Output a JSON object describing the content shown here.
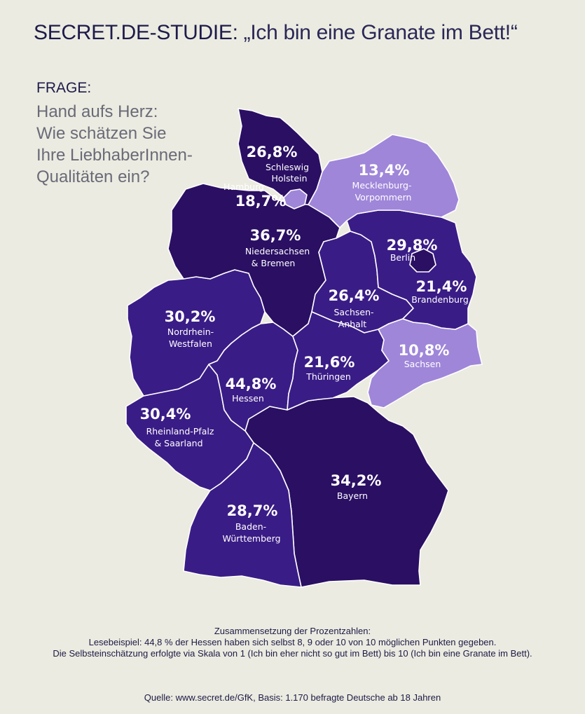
{
  "header": {
    "title_part1": "SECRET.DE-STUDIE:",
    "title_part2": "„Ich bin eine Granate im Bett!“"
  },
  "question": {
    "label": "FRAGE:",
    "lines": [
      "Hand aufs Herz:",
      "Wie schätzen Sie",
      "Ihre LiebhaberInnen-",
      "Qualitäten ein?"
    ]
  },
  "colors": {
    "dark": "#2a0f63",
    "mid": "#3a1c86",
    "light": "#9f86d9",
    "border": "#ffffff",
    "background": "#ebebe1"
  },
  "regions": [
    {
      "id": "schleswig-holstein",
      "value": "26,8%",
      "name_lines": [
        "Schleswig",
        "Holstein"
      ],
      "percent": 26.8
    },
    {
      "id": "hamburg",
      "value": "18,7%",
      "name_lines": [
        "Hamburg"
      ],
      "percent": 18.7
    },
    {
      "id": "mecklenburg-vorpommern",
      "value": "13,4%",
      "name_lines": [
        "Mecklenburg-",
        "Vorpommern"
      ],
      "percent": 13.4
    },
    {
      "id": "niedersachsen-bremen",
      "value": "36,7%",
      "name_lines": [
        "Niedersachsen",
        "& Bremen"
      ],
      "percent": 36.7
    },
    {
      "id": "berlin",
      "value": "29,8%",
      "name_lines": [
        "Berlin"
      ],
      "percent": 29.8
    },
    {
      "id": "brandenburg",
      "value": "21,4%",
      "name_lines": [
        "Brandenburg"
      ],
      "percent": 21.4
    },
    {
      "id": "sachsen-anhalt",
      "value": "26,4%",
      "name_lines": [
        "Sachsen-",
        "Anhalt"
      ],
      "percent": 26.4
    },
    {
      "id": "nordrhein-westfalen",
      "value": "30,2%",
      "name_lines": [
        "Nordrhein-",
        "Westfalen"
      ],
      "percent": 30.2
    },
    {
      "id": "sachsen",
      "value": "10,8%",
      "name_lines": [
        "Sachsen"
      ],
      "percent": 10.8
    },
    {
      "id": "thueringen",
      "value": "21,6%",
      "name_lines": [
        "Thüringen"
      ],
      "percent": 21.6
    },
    {
      "id": "hessen",
      "value": "44,8%",
      "name_lines": [
        "Hessen"
      ],
      "percent": 44.8
    },
    {
      "id": "rheinland-pfalz-saarland",
      "value": "30,4%",
      "name_lines": [
        "Rheinland-Pfalz",
        "& Saarland"
      ],
      "percent": 30.4
    },
    {
      "id": "bayern",
      "value": "34,2%",
      "name_lines": [
        "Bayern"
      ],
      "percent": 34.2
    },
    {
      "id": "baden-wuerttemberg",
      "value": "28,7%",
      "name_lines": [
        "Baden-",
        "Württemberg"
      ],
      "percent": 28.7
    }
  ],
  "footer": {
    "notes": [
      "Zusammensetzung der Prozentzahlen:",
      "Lesebeispiel: 44,8 % der Hessen haben sich selbst 8, 9 oder 10 von 10 möglichen Punkten gegeben.",
      "Die Selbsteinschätzung erfolgte via Skala von 1 (Ich bin eher nicht so gut im Bett) bis 10 (Ich bin eine Granate im Bett)."
    ],
    "source": "Quelle: www.secret.de/GfK, Basis: 1.170 befragte Deutsche ab 18 Jahren"
  }
}
